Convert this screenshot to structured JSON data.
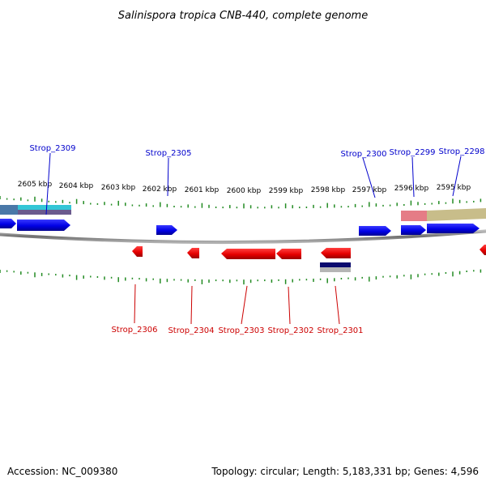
{
  "title": "Salinispora tropica CNB-440, complete genome",
  "ruler_labels": [
    "2605 kbp",
    "2604 kbp",
    "2603 kbp",
    "2602 kbp",
    "2601 kbp",
    "2600 kbp",
    "2599 kbp",
    "2598 kbp",
    "2597 kbp",
    "2596 kbp",
    "2595 kbp"
  ],
  "genes_forward": [
    {
      "label": "Strop_2309"
    },
    {
      "label": "Strop_2305"
    },
    {
      "label": "Strop_2300"
    },
    {
      "label": "Strop_2299"
    },
    {
      "label": "Strop_2298"
    }
  ],
  "genes_reverse": [
    {
      "label": "Strop_2306"
    },
    {
      "label": "Strop_2304"
    },
    {
      "label": "Strop_2303"
    },
    {
      "label": "Strop_2302"
    },
    {
      "label": "Strop_2301"
    }
  ],
  "footer": {
    "accession": "Accession: NC_009380",
    "summary": "Topology: circular; Length: 5,183,331 bp; Genes: 4,596"
  },
  "colors": {
    "forward_gene": "#0000ee",
    "reverse_gene": "#ee0000",
    "tick": "#228b22",
    "backbone": "#808080"
  }
}
